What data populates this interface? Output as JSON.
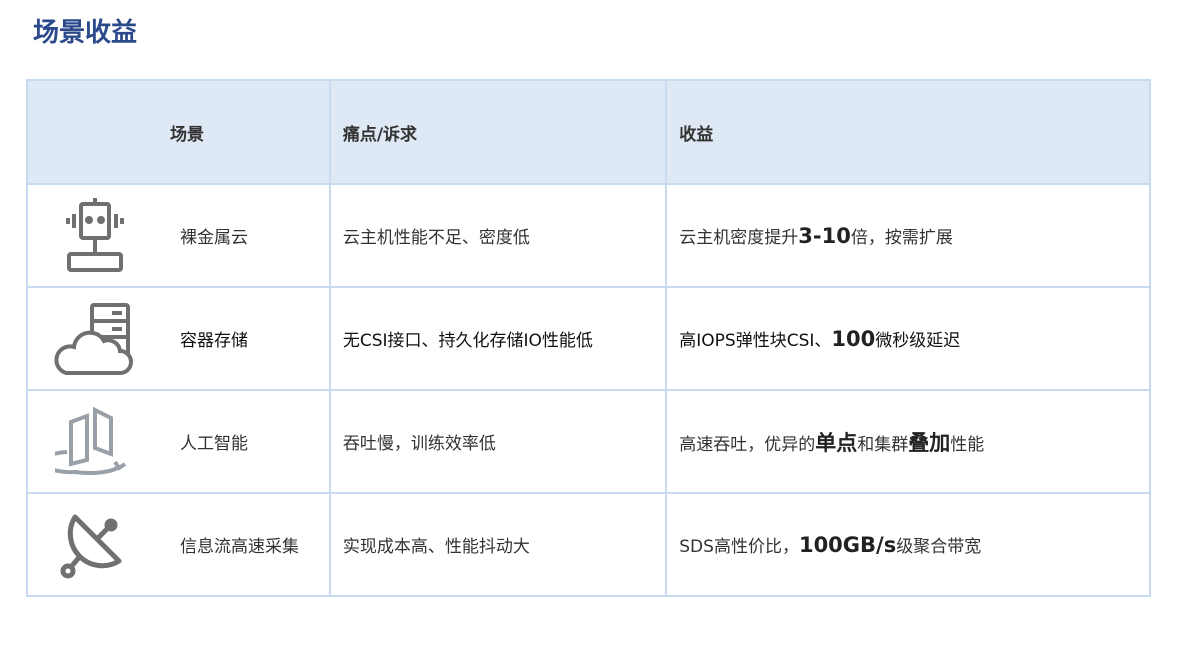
{
  "title": "场景收益",
  "headers": [
    "场景",
    "痛点/诉求",
    "收益"
  ],
  "rows": [
    {
      "icon": "robot-icon",
      "scene": "裸金属云",
      "pain": "云主机性能不足、密度低",
      "benefit": [
        {
          "t": "云主机密度提升",
          "b": false
        },
        {
          "t": "3-10",
          "b": true
        },
        {
          "t": "倍，按需扩展",
          "b": false
        }
      ]
    },
    {
      "icon": "cloud-server-icon",
      "scene": "容器存储",
      "pain": "无CSI接口、持久化存储IO性能低",
      "benefit": [
        {
          "t": "高IOPS弹性块CSI、",
          "b": false
        },
        {
          "t": "100",
          "b": true
        },
        {
          "t": "微秒级延迟",
          "b": false
        }
      ]
    },
    {
      "icon": "rotate-panels-icon",
      "scene": "人工智能",
      "pain": "吞吐慢，训练效率低",
      "benefit": [
        {
          "t": "高速吞吐，优异的",
          "b": false
        },
        {
          "t": "单点",
          "b": true
        },
        {
          "t": "和集群",
          "b": false
        },
        {
          "t": "叠加",
          "b": true
        },
        {
          "t": "性能",
          "b": false
        }
      ]
    },
    {
      "icon": "satellite-dish-icon",
      "scene": "信息流高速采集",
      "pain": "实现成本高、性能抖动大",
      "benefit": [
        {
          "t": "SDS高性价比，",
          "b": false
        },
        {
          "t": "100GB/s",
          "b": true
        },
        {
          "t": "级聚合带宽",
          "b": false
        }
      ]
    }
  ]
}
